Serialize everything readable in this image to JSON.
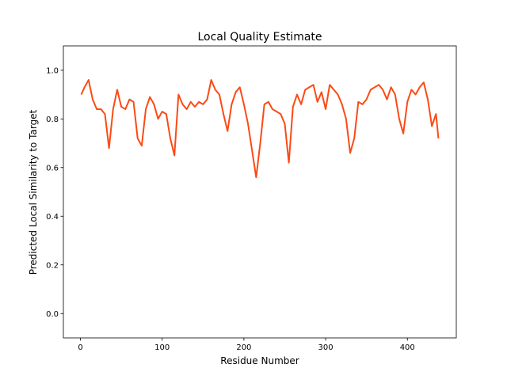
{
  "chart_data": {
    "type": "line",
    "title": "Local Quality Estimate",
    "xlabel": "Residue Number",
    "ylabel": "Predicted Local Similarity to Target",
    "x": [
      1,
      5,
      10,
      15,
      20,
      25,
      30,
      35,
      40,
      45,
      50,
      55,
      60,
      65,
      70,
      75,
      80,
      85,
      90,
      95,
      100,
      105,
      110,
      115,
      120,
      125,
      130,
      135,
      140,
      145,
      150,
      155,
      160,
      165,
      170,
      175,
      180,
      185,
      190,
      195,
      200,
      205,
      210,
      215,
      220,
      225,
      230,
      235,
      240,
      245,
      250,
      255,
      260,
      265,
      270,
      275,
      280,
      285,
      290,
      295,
      300,
      305,
      310,
      315,
      320,
      325,
      330,
      335,
      340,
      345,
      350,
      355,
      360,
      365,
      370,
      375,
      380,
      385,
      390,
      395,
      400,
      405,
      410,
      415,
      420,
      425,
      430,
      435,
      438
    ],
    "series": [
      {
        "color": "#fc4a14",
        "values": [
          0.9,
          0.93,
          0.96,
          0.88,
          0.84,
          0.84,
          0.82,
          0.68,
          0.84,
          0.92,
          0.85,
          0.84,
          0.88,
          0.87,
          0.72,
          0.69,
          0.84,
          0.89,
          0.86,
          0.8,
          0.83,
          0.82,
          0.72,
          0.65,
          0.9,
          0.86,
          0.84,
          0.87,
          0.85,
          0.87,
          0.86,
          0.88,
          0.96,
          0.92,
          0.9,
          0.82,
          0.75,
          0.86,
          0.91,
          0.93,
          0.86,
          0.78,
          0.67,
          0.56,
          0.7,
          0.86,
          0.87,
          0.84,
          0.83,
          0.82,
          0.78,
          0.62,
          0.85,
          0.9,
          0.86,
          0.92,
          0.93,
          0.94,
          0.87,
          0.91,
          0.84,
          0.94,
          0.92,
          0.9,
          0.86,
          0.8,
          0.66,
          0.72,
          0.87,
          0.86,
          0.88,
          0.92,
          0.93,
          0.94,
          0.92,
          0.88,
          0.93,
          0.9,
          0.8,
          0.74,
          0.87,
          0.92,
          0.9,
          0.93,
          0.95,
          0.88,
          0.77,
          0.82,
          0.72
        ]
      }
    ],
    "xlim": [
      -20.85,
      459.85
    ],
    "ylim": [
      -0.1,
      1.1
    ],
    "xticks": [
      0,
      100,
      200,
      300,
      400
    ],
    "yticks": [
      {
        "value": 0,
        "label": "0.0"
      },
      0.2,
      0.4,
      0.6,
      0.8,
      {
        "value": 1,
        "label": "1.0"
      }
    ]
  }
}
